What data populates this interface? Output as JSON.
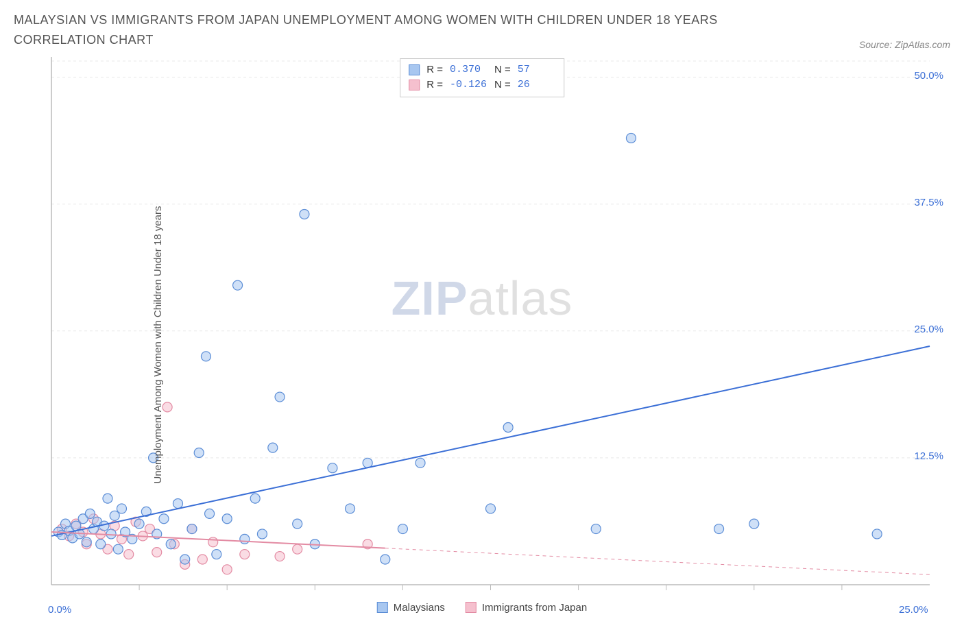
{
  "title": "MALAYSIAN VS IMMIGRANTS FROM JAPAN UNEMPLOYMENT AMONG WOMEN WITH CHILDREN UNDER 18 YEARS CORRELATION CHART",
  "source_label": "Source: ZipAtlas.com",
  "watermark": {
    "part1": "ZIP",
    "part2": "atlas"
  },
  "chart": {
    "type": "scatter",
    "ylabel": "Unemployment Among Women with Children Under 18 years",
    "xlim": [
      0,
      25
    ],
    "ylim": [
      0,
      52
    ],
    "xtick_labels": [
      "0.0%",
      "25.0%"
    ],
    "ytick_labels": [
      "50.0%",
      "37.5%",
      "25.0%",
      "12.5%"
    ],
    "ytick_values": [
      50,
      37.5,
      25,
      12.5
    ],
    "xtick_minor": [
      2.5,
      5,
      7.5,
      10,
      12.5,
      15,
      17.5,
      20,
      22.5
    ],
    "grid_color": "#e8e8e8",
    "axis_color": "#bbbbbb",
    "background_color": "#ffffff",
    "marker_radius": 7,
    "marker_opacity": 0.55,
    "line_width": 2,
    "series": [
      {
        "name": "Malaysians",
        "color_fill": "#a8c7f0",
        "color_stroke": "#5b8dd6",
        "line_color": "#3b6fd6",
        "R": "0.370",
        "N": "57",
        "regression": {
          "x1": 0,
          "y1": 4.8,
          "x2": 25,
          "y2": 23.5,
          "solid_until_x": 25
        },
        "points": [
          [
            0.2,
            5.2
          ],
          [
            0.3,
            4.9
          ],
          [
            0.4,
            6.0
          ],
          [
            0.5,
            5.3
          ],
          [
            0.6,
            4.6
          ],
          [
            0.7,
            5.8
          ],
          [
            0.8,
            5.0
          ],
          [
            0.9,
            6.5
          ],
          [
            1.0,
            4.2
          ],
          [
            1.1,
            7.0
          ],
          [
            1.2,
            5.5
          ],
          [
            1.3,
            6.2
          ],
          [
            1.4,
            4.0
          ],
          [
            1.5,
            5.8
          ],
          [
            1.6,
            8.5
          ],
          [
            1.7,
            5.0
          ],
          [
            1.8,
            6.8
          ],
          [
            1.9,
            3.5
          ],
          [
            2.0,
            7.5
          ],
          [
            2.1,
            5.2
          ],
          [
            2.3,
            4.5
          ],
          [
            2.5,
            6.0
          ],
          [
            2.7,
            7.2
          ],
          [
            2.9,
            12.5
          ],
          [
            3.0,
            5.0
          ],
          [
            3.2,
            6.5
          ],
          [
            3.4,
            4.0
          ],
          [
            3.6,
            8.0
          ],
          [
            3.8,
            2.5
          ],
          [
            4.0,
            5.5
          ],
          [
            4.2,
            13.0
          ],
          [
            4.4,
            22.5
          ],
          [
            4.5,
            7.0
          ],
          [
            4.7,
            3.0
          ],
          [
            5.0,
            6.5
          ],
          [
            5.3,
            29.5
          ],
          [
            5.5,
            4.5
          ],
          [
            5.8,
            8.5
          ],
          [
            6.0,
            5.0
          ],
          [
            6.3,
            13.5
          ],
          [
            6.5,
            18.5
          ],
          [
            7.0,
            6.0
          ],
          [
            7.2,
            36.5
          ],
          [
            7.5,
            4.0
          ],
          [
            8.0,
            11.5
          ],
          [
            8.5,
            7.5
          ],
          [
            9.0,
            12.0
          ],
          [
            9.5,
            2.5
          ],
          [
            10.0,
            5.5
          ],
          [
            10.5,
            12.0
          ],
          [
            12.5,
            7.5
          ],
          [
            13.0,
            15.5
          ],
          [
            15.5,
            5.5
          ],
          [
            16.5,
            44.0
          ],
          [
            19.0,
            5.5
          ],
          [
            20.0,
            6.0
          ],
          [
            23.5,
            5.0
          ]
        ]
      },
      {
        "name": "Immigrants from Japan",
        "color_fill": "#f5c0ce",
        "color_stroke": "#e38ba3",
        "line_color": "#e38ba3",
        "R": "-0.126",
        "N": "26",
        "regression": {
          "x1": 0,
          "y1": 5.2,
          "x2": 25,
          "y2": 1.0,
          "solid_until_x": 9.5
        },
        "points": [
          [
            0.3,
            5.5
          ],
          [
            0.5,
            4.8
          ],
          [
            0.7,
            6.0
          ],
          [
            0.9,
            5.2
          ],
          [
            1.0,
            4.0
          ],
          [
            1.2,
            6.5
          ],
          [
            1.4,
            5.0
          ],
          [
            1.6,
            3.5
          ],
          [
            1.8,
            5.8
          ],
          [
            2.0,
            4.5
          ],
          [
            2.2,
            3.0
          ],
          [
            2.4,
            6.2
          ],
          [
            2.6,
            4.8
          ],
          [
            2.8,
            5.5
          ],
          [
            3.0,
            3.2
          ],
          [
            3.3,
            17.5
          ],
          [
            3.5,
            4.0
          ],
          [
            3.8,
            2.0
          ],
          [
            4.0,
            5.5
          ],
          [
            4.3,
            2.5
          ],
          [
            4.6,
            4.2
          ],
          [
            5.0,
            1.5
          ],
          [
            5.5,
            3.0
          ],
          [
            6.5,
            2.8
          ],
          [
            7.0,
            3.5
          ],
          [
            9.0,
            4.0
          ]
        ]
      }
    ],
    "legend_labels": [
      "Malaysians",
      "Immigrants from Japan"
    ]
  }
}
